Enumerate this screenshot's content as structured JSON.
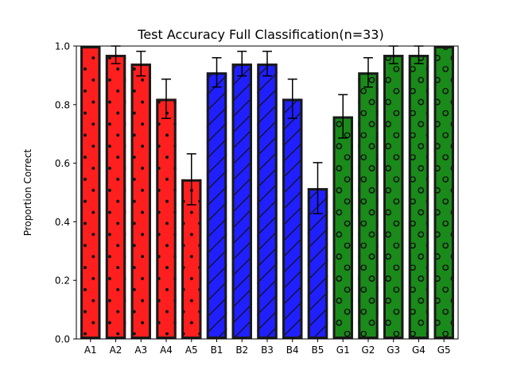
{
  "chart_data": {
    "type": "bar",
    "title": "Test Accuracy Full Classification(n=33)",
    "xlabel": "",
    "ylabel": "Proportion Correct",
    "ylim": [
      0,
      1.0
    ],
    "yticks": [
      "0.0",
      "0.2",
      "0.4",
      "0.6",
      "0.8",
      "1.0"
    ],
    "grid": false,
    "categories": [
      "A1",
      "A2",
      "A3",
      "A4",
      "A5",
      "B1",
      "B2",
      "B3",
      "B4",
      "B5",
      "G1",
      "G2",
      "G3",
      "G4",
      "G5"
    ],
    "values": [
      1.0,
      0.97,
      0.94,
      0.82,
      0.545,
      0.91,
      0.94,
      0.94,
      0.82,
      0.515,
      0.76,
      0.91,
      0.97,
      0.97,
      1.0
    ],
    "errors": [
      0.0,
      0.03,
      0.042,
      0.067,
      0.087,
      0.05,
      0.042,
      0.042,
      0.067,
      0.087,
      0.074,
      0.05,
      0.03,
      0.03,
      0.0
    ],
    "groups": [
      {
        "name": "A",
        "color": "#ff1f1f",
        "pattern": "dots"
      },
      {
        "name": "B",
        "color": "#1f1fff",
        "pattern": "hatch"
      },
      {
        "name": "G",
        "color": "#1a8a1a",
        "pattern": "circles"
      }
    ],
    "edge_color": "#1a1a1a"
  }
}
